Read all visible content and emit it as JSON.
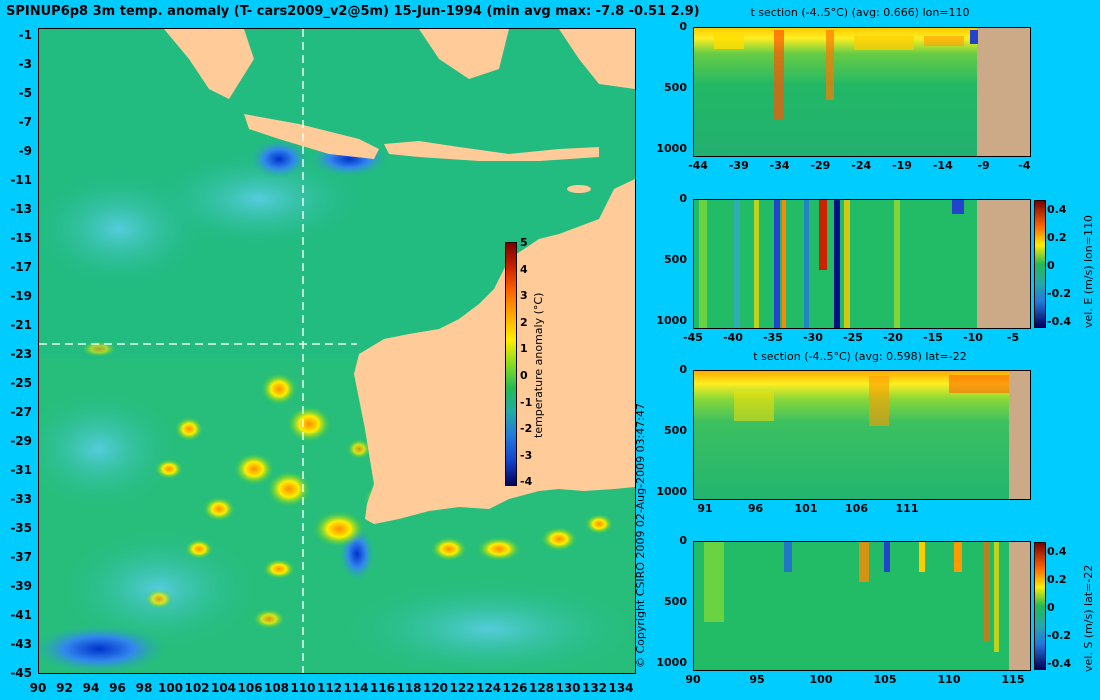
{
  "header": {
    "title": "SPINUP6p8 3m temp. anomaly (T- cars2009_v2@5m) 15-Jun-1994 (min avg max: -7.8 -0.51 2.9)"
  },
  "map": {
    "lon_ticks": [
      "90",
      "92",
      "94",
      "96",
      "98",
      "100",
      "102",
      "104",
      "106",
      "108",
      "110",
      "112",
      "114",
      "116",
      "118",
      "120",
      "122",
      "124",
      "126",
      "128",
      "130",
      "132",
      "134"
    ],
    "lat_ticks": [
      "-1",
      "-3",
      "-5",
      "-7",
      "-9",
      "-11",
      "-13",
      "-15",
      "-17",
      "-19",
      "-21",
      "-23",
      "-25",
      "-27",
      "-29",
      "-31",
      "-33",
      "-35",
      "-37",
      "-39",
      "-41",
      "-43",
      "-45"
    ],
    "colorbar": {
      "label": "temperature anomaly (°C)",
      "ticks": [
        "5",
        "4",
        "3",
        "2",
        "1",
        "0",
        "-1",
        "-2",
        "-3",
        "-4"
      ]
    },
    "copyright": "© Copyright CSIRO 2009   02-Aug-2009 03:47:47",
    "colors": {
      "ocean": "#1ec06e",
      "land": "#ffcc99",
      "background": "#00ccff"
    }
  },
  "sections": {
    "t_lon": {
      "title": "t section (-4..5°C) (avg: 0.666) lon=110",
      "x_ticks": [
        "-44",
        "-39",
        "-34",
        "-29",
        "-24",
        "-19",
        "-14",
        "-9",
        "-4"
      ],
      "y_ticks": [
        "0",
        "500",
        "1000"
      ]
    },
    "vel_e": {
      "x_ticks": [
        "-45",
        "-40",
        "-35",
        "-30",
        "-25",
        "-20",
        "-15",
        "-10",
        "-5"
      ],
      "y_ticks": [
        "0",
        "500",
        "1000"
      ],
      "colorbar_ticks": [
        "0.4",
        "0.2",
        "0",
        "-0.2",
        "-0.4"
      ],
      "colorbar_label": "vel. E (m/s) lon=110"
    },
    "t_lat": {
      "title": "t section (-4..5°C) (avg: 0.598) lat=-22",
      "x_ticks": [
        "91",
        "96",
        "101",
        "106",
        "111"
      ],
      "y_ticks": [
        "0",
        "500",
        "1000"
      ]
    },
    "vel_s": {
      "x_ticks": [
        "90",
        "95",
        "100",
        "105",
        "110",
        "115"
      ],
      "y_ticks": [
        "0",
        "500",
        "1000"
      ],
      "colorbar_ticks": [
        "0.4",
        "0.2",
        "0",
        "-0.2",
        "-0.4"
      ],
      "colorbar_label": "vel. S (m/s) lat=-22"
    }
  }
}
